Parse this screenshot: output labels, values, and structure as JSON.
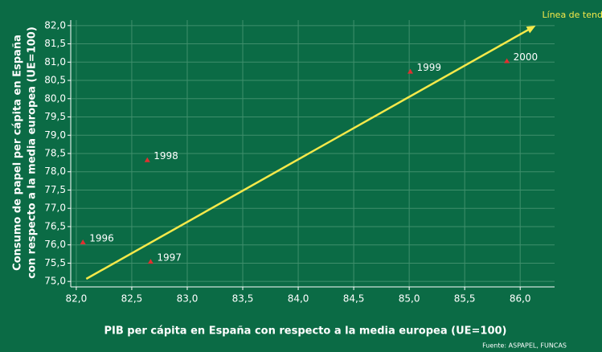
{
  "chart_data": {
    "type": "scatter",
    "xlabel": "PIB per cápita en España con respecto a la media europea (UE=100)",
    "ylabel": [
      "Consumo de papel per cápita en España",
      "con respecto a la media europea (UE=100)"
    ],
    "source": "Fuente: ASPAPEL, FUNCAS",
    "x": [
      82.06,
      82.67,
      82.64,
      85.01,
      85.88
    ],
    "values": [
      76.08,
      75.55,
      78.33,
      80.75,
      81.04
    ],
    "point_labels": [
      "1996",
      "1997",
      "1998",
      "1999",
      "2000"
    ],
    "color": "#e03030",
    "trend_line": {
      "label": "Línea de tendencia",
      "color": "#f5e94a",
      "x": [
        82.09,
        86.14
      ],
      "y": [
        75.07,
        82.0
      ]
    },
    "xlim": [
      81.95,
      86.31
    ],
    "ylim": [
      74.85,
      82.15
    ],
    "xticks": [
      {
        "value": 82,
        "label": "82,0"
      },
      {
        "value": 82.5,
        "label": "82,5"
      },
      {
        "value": 83,
        "label": "83,0"
      },
      {
        "value": 83.5,
        "label": "83,5"
      },
      {
        "value": 84,
        "label": "84,0"
      },
      {
        "value": 84.5,
        "label": "84,5"
      },
      {
        "value": 85,
        "label": "85,0"
      },
      {
        "value": 85.5,
        "label": "85,5"
      },
      {
        "value": 86,
        "label": "86,0"
      }
    ],
    "yticks": [
      {
        "value": 75,
        "label": "75,0"
      },
      {
        "value": 75.5,
        "label": "75,5"
      },
      {
        "value": 76,
        "label": "76,0"
      },
      {
        "value": 76.5,
        "label": "76,5"
      },
      {
        "value": 77,
        "label": "77,0"
      },
      {
        "value": 77.5,
        "label": "77,5"
      },
      {
        "value": 78,
        "label": "78,0"
      },
      {
        "value": 78.5,
        "label": "78,5"
      },
      {
        "value": 79,
        "label": "79,0"
      },
      {
        "value": 79.5,
        "label": "79,5"
      },
      {
        "value": 80,
        "label": "80,0"
      },
      {
        "value": 80.5,
        "label": "80,5"
      },
      {
        "value": 81,
        "label": "81,0"
      },
      {
        "value": 81.5,
        "label": "81,5"
      },
      {
        "value": 82,
        "label": "82,0"
      }
    ],
    "grid": true
  }
}
